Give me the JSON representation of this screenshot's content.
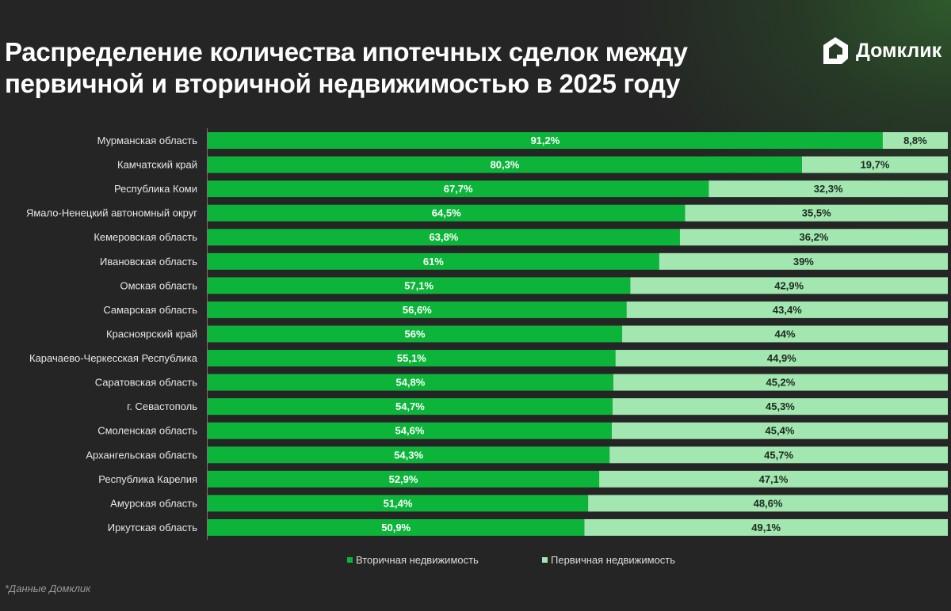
{
  "title": "Распределение количества ипотечных сделок между первичной и вторичной недвижимостью в 2025 году",
  "logo": {
    "text": "Домклик",
    "icon": "house-icon"
  },
  "footnote": "*Данные Домклик",
  "colors": {
    "secondary": "#0cb53a",
    "primary": "#a2e6b0",
    "background": "#252525"
  },
  "chart_data": {
    "type": "bar",
    "orientation": "horizontal",
    "stacked": true,
    "unit": "%",
    "xlim": [
      0,
      100
    ],
    "legend_position": "bottom",
    "categories": [
      "Мурманская область",
      "Камчатский край",
      "Республика Коми",
      "Ямало-Ненецкий автономный округ",
      "Кемеровская область",
      "Ивановская область",
      "Омская область",
      "Самарская область",
      "Красноярский край",
      "Карачаево-Черкесская Республика",
      "Саратовская область",
      "г. Севастополь",
      "Смоленская область",
      "Архангельская область",
      "Республика Карелия",
      "Амурская область",
      "Иркутская область"
    ],
    "series": [
      {
        "name": "Вторичная недвижимость",
        "values": [
          91.2,
          80.3,
          67.7,
          64.5,
          63.8,
          61,
          57.1,
          56.6,
          56,
          55.1,
          54.8,
          54.7,
          54.6,
          54.3,
          52.9,
          51.4,
          50.9
        ],
        "labels": [
          "91,2%",
          "80,3%",
          "67,7%",
          "64,5%",
          "63,8%",
          "61%",
          "57,1%",
          "56,6%",
          "56%",
          "55,1%",
          "54,8%",
          "54,7%",
          "54,6%",
          "54,3%",
          "52,9%",
          "51,4%",
          "50,9%"
        ]
      },
      {
        "name": "Первичная недвижимость",
        "values": [
          8.8,
          19.7,
          32.3,
          35.5,
          36.2,
          39,
          42.9,
          43.4,
          44,
          44.9,
          45.2,
          45.3,
          45.4,
          45.7,
          47.1,
          48.6,
          49.1
        ],
        "labels": [
          "8,8%",
          "19,7%",
          "32,3%",
          "35,5%",
          "36,2%",
          "39%",
          "42,9%",
          "43,4%",
          "44%",
          "44,9%",
          "45,2%",
          "45,3%",
          "45,4%",
          "45,7%",
          "47,1%",
          "48,6%",
          "49,1%"
        ]
      }
    ]
  }
}
